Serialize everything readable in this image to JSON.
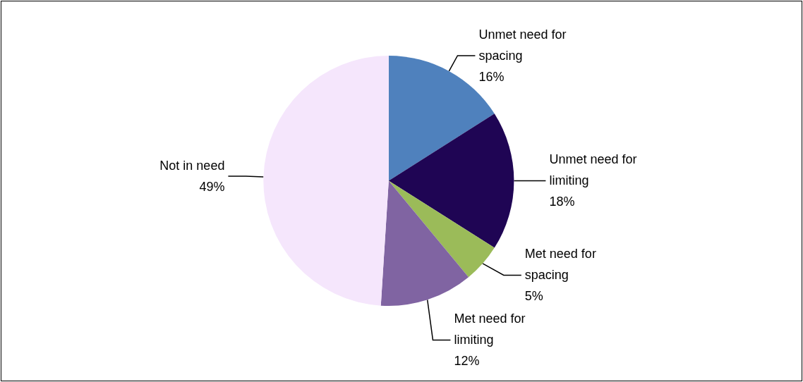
{
  "chart_data": {
    "type": "pie",
    "categories": [
      "Unmet need for spacing",
      "Unmet need for limiting",
      "Met need for spacing",
      "Met need for limiting",
      "Not in need"
    ],
    "values": [
      16,
      18,
      5,
      12,
      49
    ],
    "value_labels": [
      "16%",
      "18%",
      "5%",
      "12%",
      "49%"
    ],
    "colors": [
      "#4f81bd",
      "#1f0554",
      "#9bbb59",
      "#8064a2",
      "#f5e6fc"
    ],
    "legend": false
  }
}
